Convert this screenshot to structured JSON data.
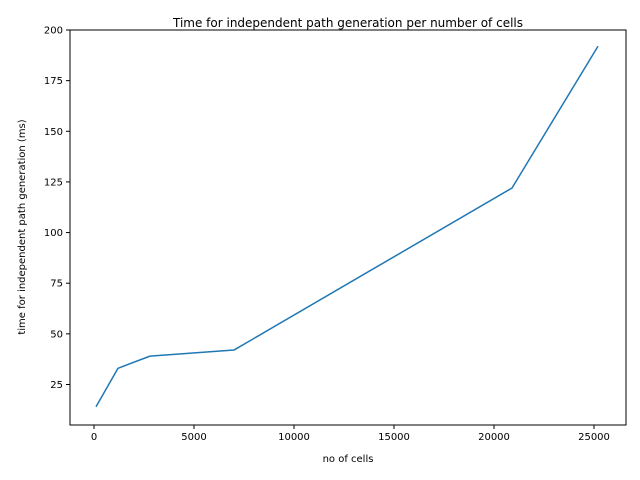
{
  "chart_data": {
    "type": "line",
    "title": "Time for independent path generation per number of cells",
    "xlabel": "no of cells",
    "ylabel": "time for independent path generation (ms)",
    "xlim": [
      -1200,
      26600
    ],
    "ylim": [
      5,
      200
    ],
    "xticks": [
      0,
      5000,
      10000,
      15000,
      20000,
      25000
    ],
    "yticks": [
      25,
      50,
      75,
      100,
      125,
      150,
      175,
      200
    ],
    "grid": false,
    "series": [
      {
        "color": "#1f77b4",
        "x": [
          100,
          1200,
          2800,
          7000,
          20900,
          25200
        ],
        "y": [
          14,
          33,
          39,
          42,
          122,
          192
        ]
      }
    ]
  }
}
